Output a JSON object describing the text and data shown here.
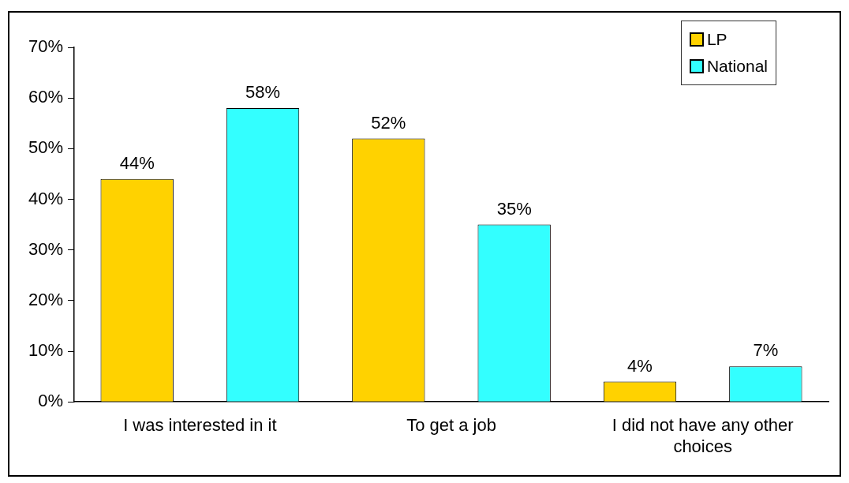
{
  "chart_data": {
    "type": "bar",
    "categories": [
      "I was interested in it",
      "To get a job",
      "I did not have any other choices"
    ],
    "series": [
      {
        "name": "LP",
        "color": "#ffd200",
        "values": [
          44,
          52,
          4
        ]
      },
      {
        "name": "National",
        "color": "#33ffff",
        "values": [
          58,
          35,
          7
        ]
      }
    ],
    "ylim": [
      0,
      70
    ],
    "yticks": [
      {
        "value": 0,
        "label": "0%"
      },
      {
        "value": 10,
        "label": "10%"
      },
      {
        "value": 20,
        "label": "20%"
      },
      {
        "value": 30,
        "label": "30%"
      },
      {
        "value": 40,
        "label": "40%"
      },
      {
        "value": 50,
        "label": "50%"
      },
      {
        "value": 60,
        "label": "60%"
      },
      {
        "value": 70,
        "label": "70%"
      }
    ],
    "value_labels": [
      [
        "44%",
        "52%",
        "4%"
      ],
      [
        "58%",
        "35%",
        "7%"
      ]
    ],
    "grid": false,
    "legend": "top right"
  }
}
